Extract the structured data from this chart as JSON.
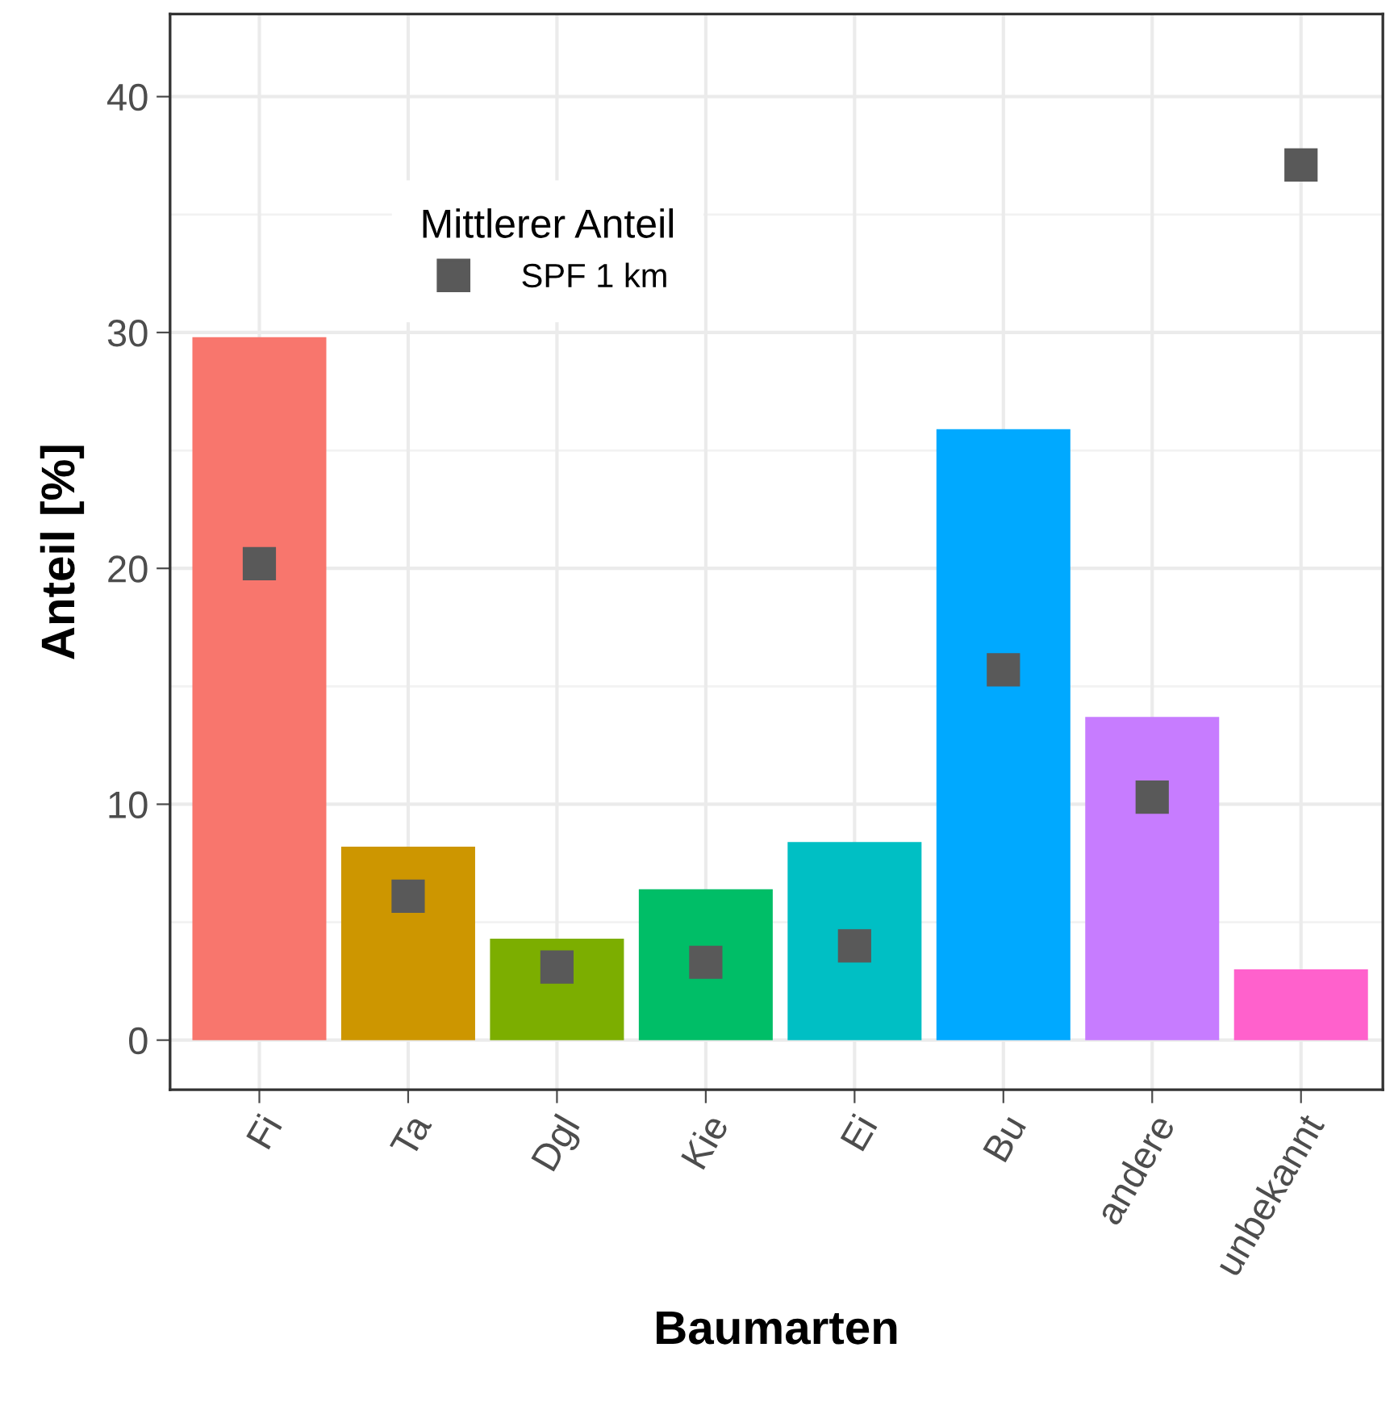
{
  "chart_data": {
    "type": "bar",
    "xlabel": "Baumarten",
    "ylabel": "Anteil [%]",
    "categories": [
      "Fi",
      "Ta",
      "Dgl",
      "Kie",
      "Ei",
      "Bu",
      "andere",
      "unbekannt"
    ],
    "legend_title": "Mittlerer Anteil",
    "series": [
      {
        "values": [
          29.8,
          8.2,
          4.3,
          6.4,
          8.4,
          25.9,
          13.7,
          3.0
        ],
        "colors": [
          "#f8766d",
          "#cd9600",
          "#7cae00",
          "#00be67",
          "#00bfc4",
          "#00a9ff",
          "#c77cff",
          "#ff61cc"
        ]
      },
      {
        "type": "scatter",
        "name": "SPF 1 km",
        "color": "#595959",
        "marker": "square",
        "values": [
          20.2,
          6.1,
          3.1,
          3.3,
          4.0,
          15.7,
          10.3,
          37.1
        ]
      }
    ],
    "ylim": [
      -2.1,
      43.5
    ],
    "yticks": [
      0,
      10,
      20,
      30,
      40
    ],
    "grid": true,
    "legend": "top left"
  }
}
